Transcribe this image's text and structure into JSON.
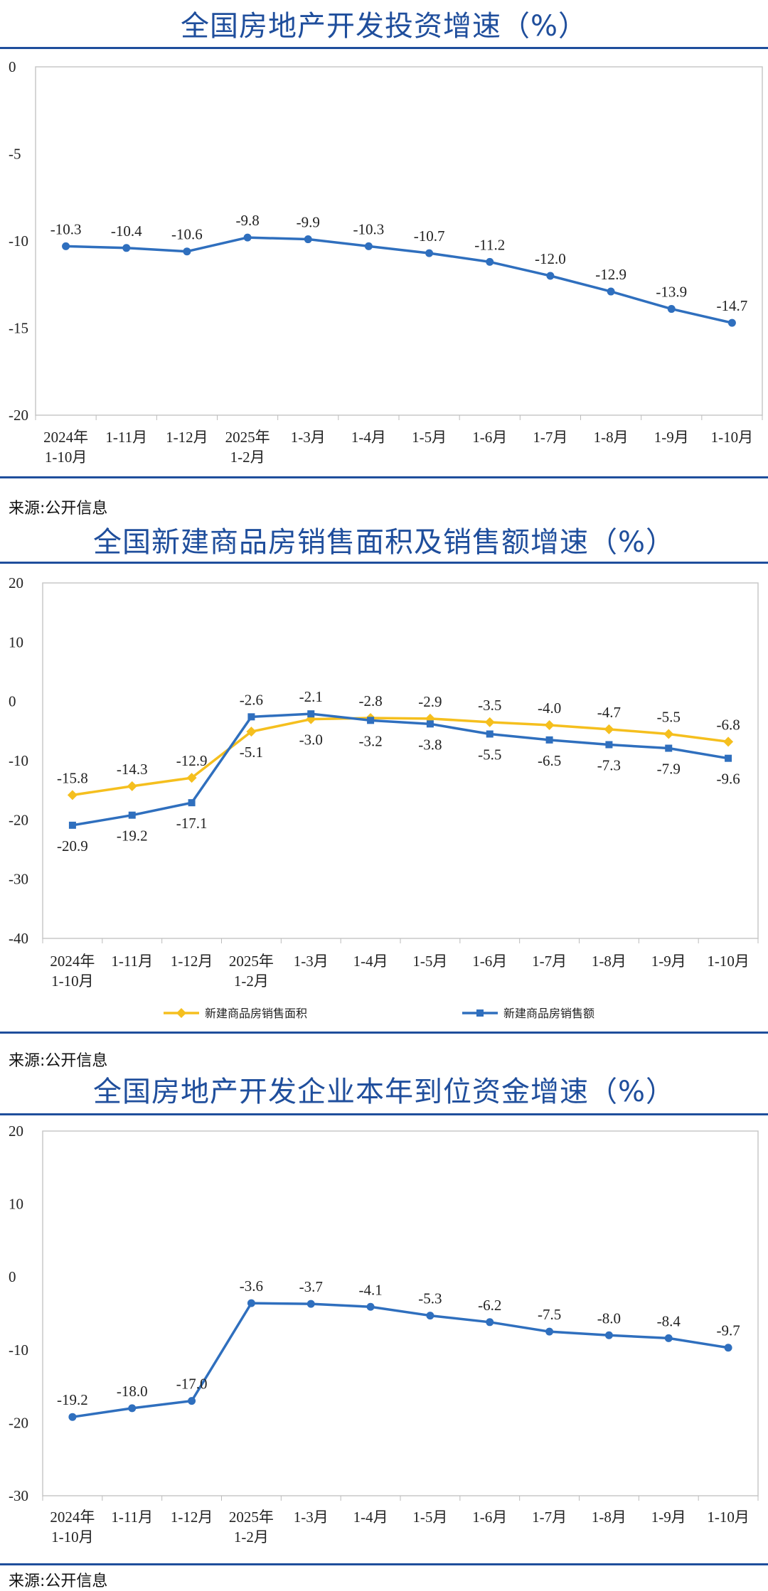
{
  "source_label": "来源:公开信息",
  "colors": {
    "title": "#1f4e9c",
    "line_blue": "#2f6fbe",
    "line_yellow": "#f5bf1e"
  },
  "chart_data": [
    {
      "type": "line",
      "title": "全国房地产开发投资增速（%）",
      "categories": [
        [
          "2024年",
          "1-10月"
        ],
        [
          "1-11月"
        ],
        [
          "1-12月"
        ],
        [
          "2025年",
          "1-2月"
        ],
        [
          "1-3月"
        ],
        [
          "1-4月"
        ],
        [
          "1-5月"
        ],
        [
          "1-6月"
        ],
        [
          "1-7月"
        ],
        [
          "1-8月"
        ],
        [
          "1-9月"
        ],
        [
          "1-10月"
        ]
      ],
      "ylim": [
        -20,
        0
      ],
      "yticks": [
        0,
        -5,
        -10,
        -15,
        -20
      ],
      "legend": null,
      "series": [
        {
          "color": "#2f6fbe",
          "marker": "circle",
          "values": [
            -10.3,
            -10.4,
            -10.6,
            -9.8,
            -9.9,
            -10.3,
            -10.7,
            -11.2,
            -12.0,
            -12.9,
            -13.9,
            -14.7
          ],
          "labels": [
            "-10.3",
            "-10.4",
            "-10.6",
            "-9.8",
            "-9.9",
            "-10.3",
            "-10.7",
            "-11.2",
            "-12.0",
            "-12.9",
            "-13.9",
            "-14.7"
          ],
          "label_pos": [
            "above",
            "above",
            "above",
            "above",
            "above",
            "above",
            "above",
            "above",
            "above",
            "above",
            "above",
            "above"
          ]
        }
      ]
    },
    {
      "type": "line",
      "title": "全国新建商品房销售面积及销售额增速（%）",
      "categories": [
        [
          "2024年",
          "1-10月"
        ],
        [
          "1-11月"
        ],
        [
          "1-12月"
        ],
        [
          "2025年",
          "1-2月"
        ],
        [
          "1-3月"
        ],
        [
          "1-4月"
        ],
        [
          "1-5月"
        ],
        [
          "1-6月"
        ],
        [
          "1-7月"
        ],
        [
          "1-8月"
        ],
        [
          "1-9月"
        ],
        [
          "1-10月"
        ]
      ],
      "ylim": [
        -40,
        20
      ],
      "yticks": [
        20,
        10,
        0,
        -10,
        -20,
        -30,
        -40
      ],
      "legend": "bottom",
      "series": [
        {
          "name": "新建商品房销售面积",
          "color": "#f5bf1e",
          "marker": "diamond",
          "values": [
            -15.8,
            -14.3,
            -12.9,
            -5.1,
            -3.0,
            -2.8,
            -2.9,
            -3.5,
            -4.0,
            -4.7,
            -5.5,
            -6.8
          ],
          "labels": [
            "-15.8",
            "-14.3",
            "-12.9",
            "-5.1",
            "-3.0",
            "-2.8",
            "-2.9",
            "-3.5",
            "-4.0",
            "-4.7",
            "-5.5",
            "-6.8"
          ],
          "label_pos": [
            "above",
            "above",
            "above",
            "below",
            "below",
            "above",
            "above",
            "above",
            "above",
            "above",
            "above",
            "above"
          ]
        },
        {
          "name": "新建商品房销售额",
          "color": "#2f6fbe",
          "marker": "square",
          "values": [
            -20.9,
            -19.2,
            -17.1,
            -2.6,
            -2.1,
            -3.2,
            -3.8,
            -5.5,
            -6.5,
            -7.3,
            -7.9,
            -9.6
          ],
          "labels": [
            "-20.9",
            "-19.2",
            "-17.1",
            "-2.6",
            "-2.1",
            "-3.2",
            "-3.8",
            "-5.5",
            "-6.5",
            "-7.3",
            "-7.9",
            "-9.6"
          ],
          "label_pos": [
            "below",
            "below",
            "below",
            "above",
            "above",
            "below",
            "below",
            "below",
            "below",
            "below",
            "below",
            "below"
          ]
        }
      ]
    },
    {
      "type": "line",
      "title": "全国房地产开发企业本年到位资金增速（%）",
      "categories": [
        [
          "2024年",
          "1-10月"
        ],
        [
          "1-11月"
        ],
        [
          "1-12月"
        ],
        [
          "2025年",
          "1-2月"
        ],
        [
          "1-3月"
        ],
        [
          "1-4月"
        ],
        [
          "1-5月"
        ],
        [
          "1-6月"
        ],
        [
          "1-7月"
        ],
        [
          "1-8月"
        ],
        [
          "1-9月"
        ],
        [
          "1-10月"
        ]
      ],
      "ylim": [
        -30,
        20
      ],
      "yticks": [
        20,
        10,
        0,
        -10,
        -20,
        -30
      ],
      "legend": null,
      "series": [
        {
          "color": "#2f6fbe",
          "marker": "circle",
          "values": [
            -19.2,
            -18.0,
            -17.0,
            -3.6,
            -3.7,
            -4.1,
            -5.3,
            -6.2,
            -7.5,
            -8.0,
            -8.4,
            -9.7
          ],
          "labels": [
            "-19.2",
            "-18.0",
            "-17.0",
            "-3.6",
            "-3.7",
            "-4.1",
            "-5.3",
            "-6.2",
            "-7.5",
            "-8.0",
            "-8.4",
            "-9.7"
          ],
          "label_pos": [
            "above",
            "above",
            "above",
            "above",
            "above",
            "above",
            "above",
            "above",
            "above",
            "above",
            "above",
            "above"
          ]
        }
      ]
    }
  ]
}
